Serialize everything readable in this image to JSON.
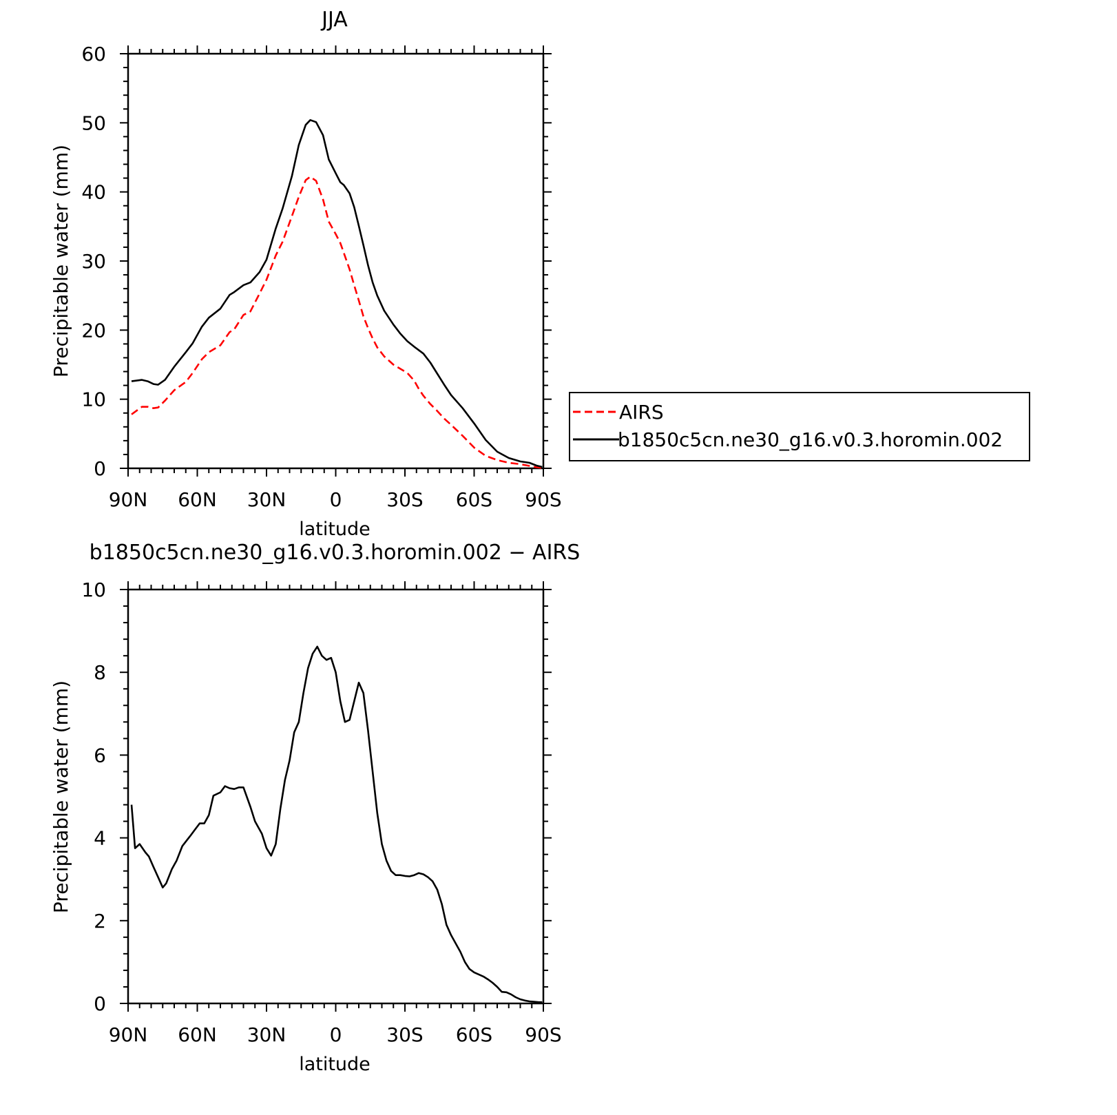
{
  "chart_data": [
    {
      "type": "line",
      "title": "JJA",
      "xlabel": "latitude",
      "ylabel": "Precipitable water (mm)",
      "xlim": [
        90,
        -90
      ],
      "ylim": [
        0,
        60
      ],
      "xticks": [
        90,
        60,
        30,
        0,
        -30,
        -60,
        -90
      ],
      "xtick_labels": [
        "90N",
        "60N",
        "30N",
        "0",
        "30S",
        "60S",
        "90S"
      ],
      "yticks": [
        0,
        10,
        20,
        30,
        40,
        50,
        60
      ],
      "ytick_labels": [
        "0",
        "10",
        "20",
        "30",
        "40",
        "50",
        "60"
      ],
      "legend_position": "right",
      "x": [
        88.5,
        84,
        81.5,
        79,
        77,
        74,
        70,
        65,
        62,
        58,
        55,
        50,
        46,
        44,
        40,
        37,
        33,
        30,
        26,
        23,
        19,
        16,
        13,
        11,
        8.5,
        5.5,
        3,
        0,
        -2,
        -3.5,
        -6,
        -8,
        -10,
        -12,
        -14,
        -16,
        -18,
        -21,
        -25,
        -28,
        -31,
        -34,
        -36,
        -38,
        -41,
        -44,
        -47,
        -50,
        -55,
        -60,
        -65,
        -70,
        -75,
        -80,
        -84,
        -87,
        -89.5
      ],
      "series": [
        {
          "name": "AIRS",
          "color": "#ff0000",
          "dash": "dashed",
          "values": [
            7.8,
            8.9,
            8.9,
            8.7,
            8.8,
            9.8,
            11.3,
            12.5,
            13.8,
            15.8,
            16.8,
            17.8,
            19.7,
            20.1,
            22.2,
            22.7,
            25.3,
            27.3,
            30.8,
            32.8,
            36.5,
            39.3,
            41.7,
            42.2,
            41.6,
            38.9,
            35.7,
            33.9,
            32.6,
            31.2,
            28.8,
            26.5,
            24.3,
            22,
            20.3,
            18.8,
            17.5,
            16.2,
            15,
            14.4,
            13.8,
            12.7,
            11.5,
            10.5,
            9.3,
            8.3,
            7.2,
            6.3,
            4.7,
            3,
            1.8,
            1.2,
            0.8,
            0.6,
            0.35,
            0.15,
            0.05
          ]
        },
        {
          "name": "b1850c5cn.ne30_g16.v0.3.horomin.002",
          "color": "#000000",
          "dash": "solid",
          "values": [
            12.6,
            12.8,
            12.6,
            12.2,
            12.1,
            12.8,
            14.7,
            16.8,
            18.1,
            20.5,
            21.8,
            23.1,
            25.1,
            25.5,
            26.5,
            26.9,
            28.4,
            30.2,
            34.7,
            37.6,
            42.3,
            46.8,
            49.7,
            50.4,
            50.1,
            48.2,
            44.7,
            42.7,
            41.4,
            41,
            39.8,
            37.8,
            35.1,
            32.3,
            29.4,
            26.9,
            25,
            22.8,
            20.8,
            19.5,
            18.4,
            17.6,
            17.1,
            16.6,
            15.3,
            13.7,
            12.1,
            10.6,
            8.7,
            6.5,
            4.1,
            2.4,
            1.5,
            1,
            0.8,
            0.4,
            0.2
          ]
        }
      ]
    },
    {
      "type": "line",
      "title": "b1850c5cn.ne30_g16.v0.3.horomin.002 − AIRS",
      "xlabel": "latitude",
      "ylabel": "Precipitable water (mm)",
      "xlim": [
        90,
        -90
      ],
      "ylim": [
        0,
        10
      ],
      "xticks": [
        90,
        60,
        30,
        0,
        -30,
        -60,
        -90
      ],
      "xtick_labels": [
        "90N",
        "60N",
        "30N",
        "0",
        "30S",
        "60S",
        "90S"
      ],
      "yticks": [
        0,
        2,
        4,
        6,
        8,
        10
      ],
      "ytick_labels": [
        "0",
        "2",
        "4",
        "6",
        "8",
        "10"
      ],
      "x": [
        88.5,
        87,
        85,
        82.5,
        81,
        79,
        77,
        75,
        73.5,
        71,
        69,
        66.5,
        63,
        61,
        59,
        57,
        55,
        53,
        50,
        48,
        46,
        44,
        42,
        40,
        37,
        35,
        32,
        30,
        28,
        26,
        24,
        22,
        20,
        18,
        16,
        14,
        12,
        10,
        8,
        6,
        4,
        2,
        0,
        -2,
        -4,
        -6,
        -8,
        -10,
        -12,
        -14,
        -16,
        -18,
        -20,
        -22,
        -24,
        -26,
        -28,
        -30,
        -32,
        -34,
        -36,
        -38,
        -40,
        -42,
        -44,
        -46,
        -48,
        -50,
        -52,
        -54,
        -56,
        -58,
        -60,
        -62,
        -64,
        -66,
        -68,
        -70,
        -72,
        -74,
        -76,
        -78,
        -80,
        -82,
        -84,
        -86,
        -88,
        -89.5
      ],
      "series": [
        {
          "name": "",
          "color": "#000000",
          "dash": "solid",
          "values": [
            4.8,
            3.75,
            3.85,
            3.65,
            3.55,
            3.3,
            3.05,
            2.8,
            2.9,
            3.25,
            3.45,
            3.8,
            4.05,
            4.2,
            4.35,
            4.35,
            4.55,
            5.02,
            5.1,
            5.25,
            5.2,
            5.18,
            5.22,
            5.22,
            4.75,
            4.4,
            4.1,
            3.75,
            3.57,
            3.85,
            4.7,
            5.4,
            5.87,
            6.55,
            6.8,
            7.5,
            8.1,
            8.45,
            8.62,
            8.4,
            8.3,
            8.35,
            8,
            7.3,
            6.8,
            6.85,
            7.3,
            7.75,
            7.5,
            6.6,
            5.6,
            4.6,
            3.85,
            3.45,
            3.2,
            3.1,
            3.1,
            3.08,
            3.07,
            3.1,
            3.15,
            3.12,
            3.05,
            2.95,
            2.75,
            2.4,
            1.9,
            1.65,
            1.45,
            1.25,
            1,
            0.83,
            0.75,
            0.7,
            0.65,
            0.58,
            0.5,
            0.4,
            0.28,
            0.27,
            0.22,
            0.15,
            0.1,
            0.07,
            0.05,
            0.04,
            0.03,
            0.03
          ]
        }
      ]
    }
  ]
}
